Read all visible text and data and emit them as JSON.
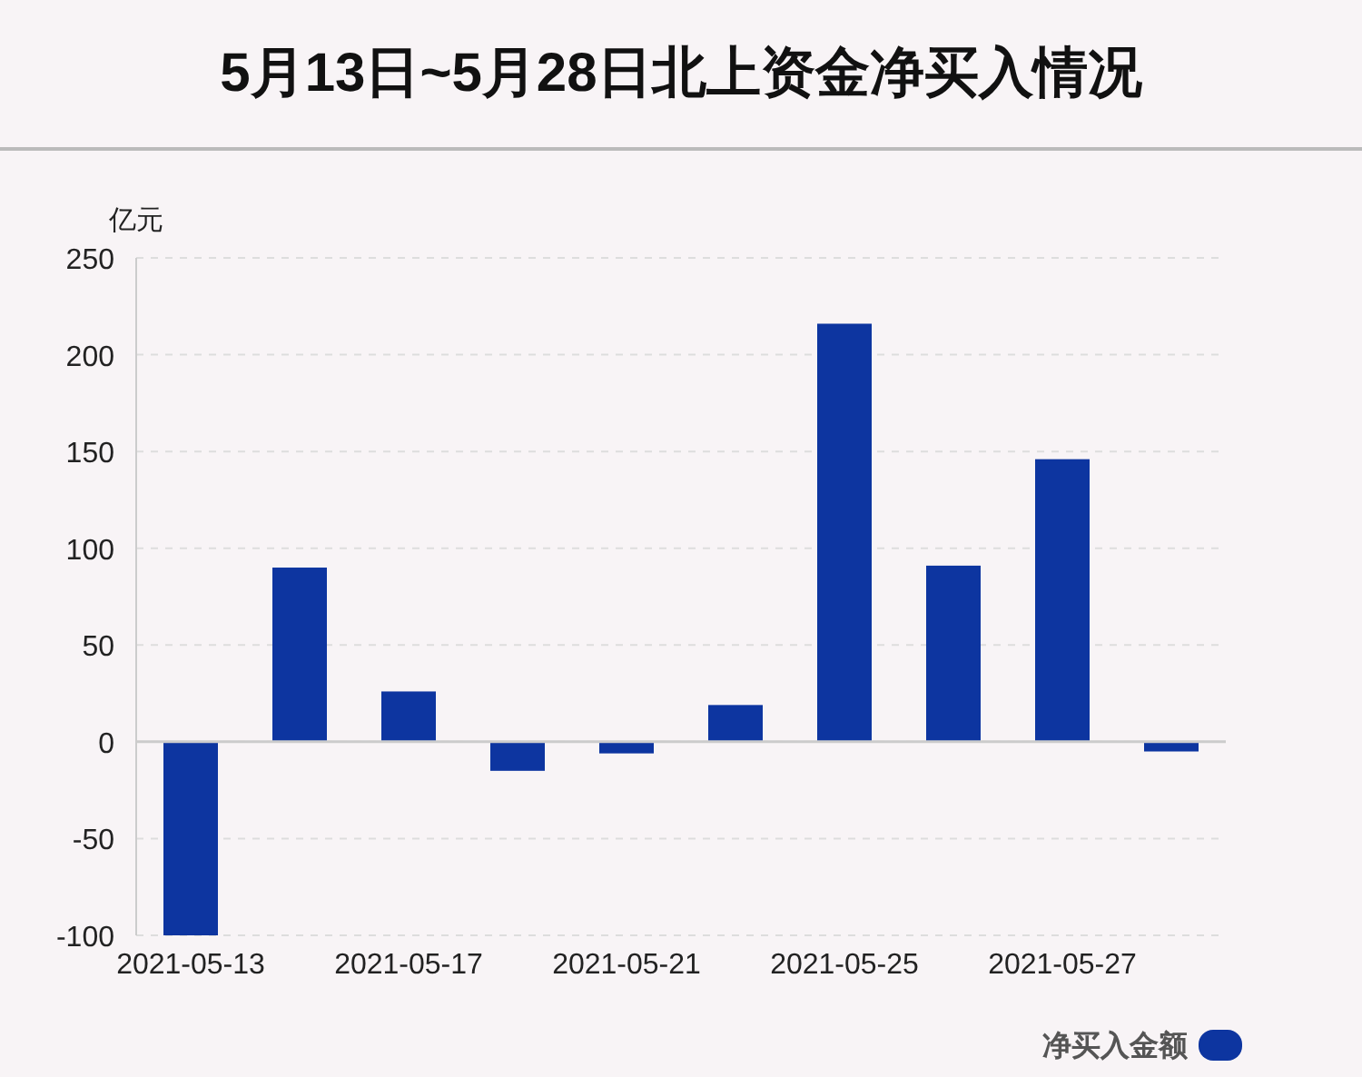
{
  "chart_data": {
    "type": "bar",
    "title": "5月13日~5月28日北上资金净买入情况",
    "ylabel": "亿元",
    "categories": [
      "2021-05-13",
      null,
      "2021-05-17",
      null,
      "2021-05-21",
      null,
      "2021-05-25",
      null,
      "2021-05-27",
      null
    ],
    "series": [
      {
        "name": "净买入金额",
        "color": "#0d35a0",
        "values": [
          -100,
          90,
          26,
          -15,
          -6,
          19,
          216,
          91,
          146,
          -5
        ]
      }
    ],
    "ylim": [
      -100,
      250
    ],
    "yticks": [
      -100,
      -50,
      0,
      50,
      100,
      150,
      200,
      250
    ],
    "grid": "y",
    "legend": "bottom right"
  }
}
